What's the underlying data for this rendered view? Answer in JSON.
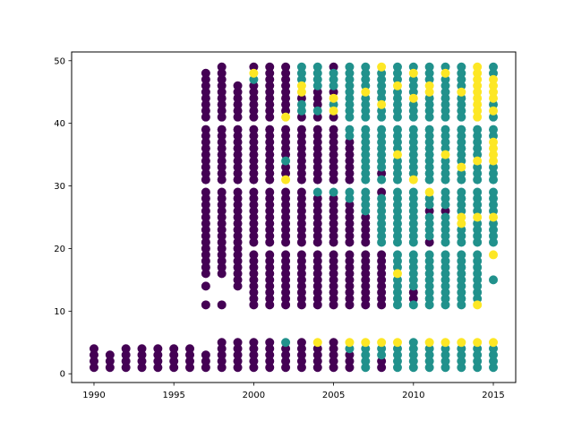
{
  "chart_data": {
    "type": "scatter",
    "title": "",
    "xlabel": "",
    "ylabel": "",
    "xlim": [
      1988.6,
      2016.4
    ],
    "ylim": [
      -1.4,
      51.4
    ],
    "x_ticks": [
      1990,
      1995,
      2000,
      2005,
      2010,
      2015
    ],
    "y_ticks": [
      0,
      10,
      20,
      30,
      40,
      50
    ],
    "x_tick_labels": [
      "1990",
      "1995",
      "2000",
      "2005",
      "2010",
      "2015"
    ],
    "y_tick_labels": [
      "0",
      "10",
      "20",
      "30",
      "40",
      "50"
    ],
    "grid": false,
    "legend": "none",
    "colors": {
      "purple": "#440154",
      "teal": "#21918c",
      "yellow": "#fde725"
    },
    "columns": [
      {
        "x": 1990,
        "bands": [
          [
            1,
            4
          ]
        ]
      },
      {
        "x": 1991,
        "bands": [
          [
            1,
            3
          ]
        ]
      },
      {
        "x": 1992,
        "bands": [
          [
            1,
            4
          ]
        ]
      },
      {
        "x": 1993,
        "bands": [
          [
            1,
            4
          ]
        ]
      },
      {
        "x": 1994,
        "bands": [
          [
            1,
            4
          ]
        ]
      },
      {
        "x": 1995,
        "bands": [
          [
            1,
            4
          ]
        ]
      },
      {
        "x": 1996,
        "bands": [
          [
            1,
            4
          ]
        ]
      },
      {
        "x": 1997,
        "bands": [
          [
            1,
            3
          ],
          [
            11,
            11
          ],
          [
            14,
            14
          ],
          [
            16,
            29
          ],
          [
            31,
            39
          ],
          [
            41,
            48
          ]
        ]
      },
      {
        "x": 1998,
        "bands": [
          [
            1,
            5
          ],
          [
            11,
            11
          ],
          [
            16,
            29
          ],
          [
            31,
            39
          ],
          [
            41,
            49
          ]
        ]
      },
      {
        "x": 1999,
        "bands": [
          [
            1,
            5
          ],
          [
            14,
            29
          ],
          [
            31,
            39
          ],
          [
            41,
            46
          ]
        ]
      },
      {
        "x": 2000,
        "bands": [
          [
            1,
            5
          ],
          [
            11,
            19
          ],
          [
            21,
            29
          ],
          [
            31,
            39
          ],
          [
            41,
            49
          ]
        ],
        "yellow": [
          48
        ],
        "teal": [
          47
        ]
      },
      {
        "x": 2001,
        "bands": [
          [
            1,
            5
          ],
          [
            11,
            19
          ],
          [
            21,
            29
          ],
          [
            31,
            39
          ],
          [
            41,
            49
          ]
        ]
      },
      {
        "x": 2002,
        "bands": [
          [
            1,
            5
          ],
          [
            11,
            19
          ],
          [
            21,
            29
          ],
          [
            31,
            39
          ],
          [
            41,
            49
          ]
        ],
        "teal": [
          5,
          34
        ],
        "yellow": [
          31,
          41
        ]
      },
      {
        "x": 2003,
        "bands": [
          [
            1,
            5
          ],
          [
            11,
            19
          ],
          [
            21,
            29
          ],
          [
            31,
            39
          ],
          [
            41,
            49
          ]
        ],
        "teal": [
          42,
          43,
          47,
          48,
          49
        ],
        "yellow": [
          45,
          46
        ]
      },
      {
        "x": 2004,
        "bands": [
          [
            1,
            5
          ],
          [
            11,
            19
          ],
          [
            21,
            29
          ],
          [
            31,
            39
          ],
          [
            41,
            49
          ]
        ],
        "teal": [
          29,
          42,
          46,
          47,
          48,
          49
        ],
        "yellow": [
          5
        ]
      },
      {
        "x": 2005,
        "bands": [
          [
            1,
            5
          ],
          [
            11,
            19
          ],
          [
            21,
            29
          ],
          [
            31,
            39
          ],
          [
            41,
            49
          ]
        ],
        "teal": [
          29,
          43,
          46,
          47,
          48
        ],
        "yellow": [
          42,
          44
        ]
      },
      {
        "x": 2006,
        "bands": [
          [
            1,
            5
          ],
          [
            11,
            19
          ],
          [
            21,
            29
          ],
          [
            31,
            39
          ],
          [
            41,
            49
          ]
        ],
        "teal": [
          4,
          5,
          28,
          29,
          38,
          39,
          41,
          42,
          43,
          44,
          45,
          46,
          47,
          48,
          49
        ],
        "yellow": [
          5
        ]
      },
      {
        "x": 2007,
        "bands": [
          [
            1,
            5
          ],
          [
            11,
            19
          ],
          [
            21,
            29
          ],
          [
            31,
            39
          ],
          [
            41,
            49
          ]
        ],
        "teal": [
          1,
          2,
          3,
          4,
          26,
          27,
          28,
          29,
          31,
          32,
          33,
          34,
          35,
          36,
          37,
          38,
          39,
          41,
          42,
          43,
          44,
          46,
          47,
          48,
          49
        ],
        "yellow": [
          5,
          45
        ]
      },
      {
        "x": 2008,
        "bands": [
          [
            1,
            5
          ],
          [
            11,
            19
          ],
          [
            21,
            29
          ],
          [
            31,
            39
          ],
          [
            41,
            49
          ]
        ],
        "teal": [
          3,
          4,
          21,
          22,
          23,
          24,
          25,
          26,
          27,
          28,
          31,
          33,
          34,
          35,
          36,
          37,
          38,
          39,
          41,
          42,
          44,
          45,
          46,
          47,
          48
        ],
        "yellow": [
          5,
          43,
          49
        ]
      },
      {
        "x": 2009,
        "bands": [
          [
            1,
            5
          ],
          [
            11,
            19
          ],
          [
            21,
            29
          ],
          [
            31,
            39
          ],
          [
            41,
            49
          ]
        ],
        "teal": [
          1,
          2,
          3,
          4,
          11,
          12,
          13,
          14,
          15,
          17,
          18,
          19,
          21,
          22,
          23,
          24,
          25,
          26,
          27,
          28,
          29,
          31,
          32,
          33,
          34,
          36,
          37,
          38,
          39,
          41,
          42,
          43,
          44,
          45,
          47,
          48,
          49
        ],
        "yellow": [
          5,
          16,
          35,
          46
        ]
      },
      {
        "x": 2010,
        "bands": [
          [
            1,
            5
          ],
          [
            11,
            19
          ],
          [
            21,
            29
          ],
          [
            31,
            39
          ],
          [
            41,
            49
          ]
        ],
        "teal": [
          1,
          2,
          3,
          4,
          5,
          11,
          12,
          13,
          14,
          15,
          16,
          17,
          18,
          19,
          21,
          22,
          23,
          24,
          25,
          26,
          27,
          28,
          29,
          31,
          32,
          33,
          34,
          35,
          36,
          37,
          38,
          39,
          41,
          42,
          43,
          44,
          45,
          46,
          47,
          48,
          49
        ],
        "yellow": [
          31,
          44,
          48
        ],
        "purple": [
          12,
          13
        ]
      },
      {
        "x": 2011,
        "bands": [
          [
            1,
            5
          ],
          [
            11,
            19
          ],
          [
            21,
            29
          ],
          [
            31,
            39
          ],
          [
            41,
            49
          ]
        ],
        "teal": [
          1,
          2,
          3,
          4,
          11,
          12,
          13,
          14,
          15,
          16,
          17,
          18,
          19,
          22,
          23,
          24,
          25,
          27,
          28,
          29,
          31,
          32,
          33,
          34,
          35,
          36,
          37,
          38,
          39,
          41,
          42,
          43,
          44,
          47,
          48,
          49
        ],
        "yellow": [
          5,
          29,
          45,
          46
        ],
        "purple": [
          21,
          26
        ]
      },
      {
        "x": 2012,
        "bands": [
          [
            1,
            5
          ],
          [
            11,
            19
          ],
          [
            21,
            29
          ],
          [
            31,
            39
          ],
          [
            41,
            49
          ]
        ],
        "teal": [
          1,
          2,
          3,
          4,
          11,
          12,
          13,
          14,
          15,
          16,
          17,
          18,
          19,
          21,
          22,
          23,
          24,
          25,
          27,
          28,
          29,
          31,
          32,
          33,
          34,
          36,
          37,
          38,
          39,
          41,
          42,
          43,
          44,
          45,
          46,
          47,
          49
        ],
        "yellow": [
          5,
          35,
          48
        ],
        "purple": [
          20,
          26,
          30
        ]
      },
      {
        "x": 2013,
        "bands": [
          [
            1,
            5
          ],
          [
            11,
            19
          ],
          [
            21,
            29
          ],
          [
            31,
            39
          ],
          [
            41,
            49
          ]
        ],
        "teal": [
          1,
          2,
          3,
          4,
          11,
          12,
          13,
          14,
          15,
          16,
          17,
          18,
          19,
          21,
          22,
          23,
          26,
          27,
          28,
          29,
          31,
          32,
          34,
          35,
          36,
          37,
          38,
          39,
          41,
          42,
          43,
          44,
          46,
          47,
          48,
          49
        ],
        "yellow": [
          5,
          24,
          25,
          33,
          40,
          45
        ]
      },
      {
        "x": 2014,
        "bands": [
          [
            1,
            5
          ],
          [
            11,
            19
          ],
          [
            21,
            29
          ],
          [
            31,
            39
          ],
          [
            41,
            49
          ]
        ],
        "teal": [
          1,
          2,
          3,
          4,
          12,
          13,
          14,
          15,
          16,
          17,
          18,
          19,
          21,
          22,
          23,
          24,
          26,
          27,
          28,
          29,
          31,
          32,
          33,
          35,
          36,
          37,
          38,
          39
        ],
        "yellow": [
          5,
          11,
          20,
          25,
          34,
          40,
          41,
          42,
          43,
          44,
          45,
          46,
          47,
          48,
          49
        ]
      },
      {
        "x": 2015,
        "bands": [
          [
            1,
            5
          ],
          [
            15,
            15
          ],
          [
            19,
            19
          ],
          [
            21,
            29
          ],
          [
            31,
            39
          ],
          [
            41,
            49
          ]
        ],
        "teal": [
          1,
          2,
          3,
          4,
          15,
          19,
          21,
          22,
          23,
          24,
          26,
          27,
          28,
          29,
          31,
          32,
          33,
          38,
          39,
          41,
          43,
          48,
          49
        ],
        "yellow": [
          5,
          19,
          25,
          34,
          35,
          36,
          37,
          40,
          42,
          44,
          45,
          46,
          47
        ]
      }
    ]
  }
}
